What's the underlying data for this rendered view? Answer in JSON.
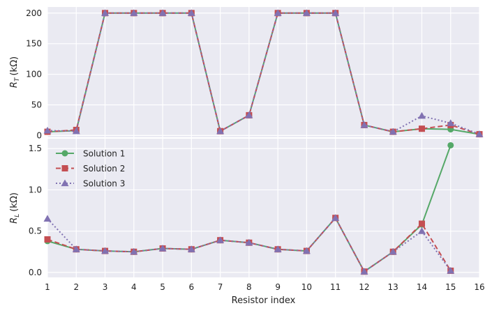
{
  "chart_data": {
    "type": "line",
    "x_label": "Resistor index",
    "x_ticks": [
      "1",
      "2",
      "3",
      "4",
      "5",
      "6",
      "7",
      "8",
      "9",
      "10",
      "11",
      "12",
      "13",
      "14",
      "15",
      "16"
    ],
    "x_range": [
      1,
      16
    ],
    "grid": true,
    "background": "#EAEAF2",
    "legend": {
      "placement": "upper-left of bottom panel",
      "entries": [
        "Solution 1",
        "Solution 2",
        "Solution 3"
      ]
    },
    "series_styles": [
      {
        "name": "Solution 1",
        "color": "#55A868",
        "marker": "circle",
        "dash": "solid"
      },
      {
        "name": "Solution 2",
        "color": "#C44E52",
        "marker": "square",
        "dash": "dashed"
      },
      {
        "name": "Solution 3",
        "color": "#8172B2",
        "marker": "triangle",
        "dash": "dotted"
      }
    ],
    "panels": [
      {
        "id": "rt",
        "ylabel_symbol": "R",
        "ylabel_sub": "T",
        "ylabel_unit": "(kΩ)",
        "y_range": [
          -3,
          210
        ],
        "y_ticks": [
          "0",
          "50",
          "100",
          "150",
          "200"
        ],
        "series": [
          {
            "name": "Solution 1",
            "x": [
              1,
              2,
              3,
              4,
              5,
              6,
              7,
              8,
              9,
              10,
              11,
              12,
              13,
              14,
              15,
              16
            ],
            "y": [
              6,
              8,
              200,
              200,
              200,
              200,
              7,
              33,
              200,
              200,
              200,
              17,
              6,
              11,
              10,
              2
            ]
          },
          {
            "name": "Solution 2",
            "x": [
              1,
              2,
              3,
              4,
              5,
              6,
              7,
              8,
              9,
              10,
              11,
              12,
              13,
              14,
              15,
              16
            ],
            "y": [
              6,
              9,
              200,
              200,
              200,
              200,
              7,
              33,
              200,
              200,
              200,
              17,
              6,
              11,
              17,
              2
            ]
          },
          {
            "name": "Solution 3",
            "x": [
              1,
              2,
              3,
              4,
              5,
              6,
              7,
              8,
              9,
              10,
              11,
              12,
              13,
              14,
              15,
              16
            ],
            "y": [
              8,
              7,
              200,
              200,
              200,
              200,
              7,
              33,
              200,
              200,
              200,
              17,
              6,
              32,
              20,
              2
            ]
          }
        ]
      },
      {
        "id": "rl",
        "ylabel_symbol": "R",
        "ylabel_sub": "L",
        "ylabel_unit": "(kΩ)",
        "y_range": [
          -0.06,
          1.62
        ],
        "y_ticks": [
          "0.0",
          "0.5",
          "1.0",
          "1.5"
        ],
        "series": [
          {
            "name": "Solution 1",
            "x": [
              1,
              2,
              3,
              4,
              5,
              6,
              7,
              8,
              9,
              10,
              11,
              12,
              13,
              14,
              15
            ],
            "y": [
              0.38,
              0.28,
              0.26,
              0.25,
              0.29,
              0.28,
              0.39,
              0.36,
              0.28,
              0.26,
              0.66,
              0.01,
              0.25,
              0.58,
              1.54
            ]
          },
          {
            "name": "Solution 2",
            "x": [
              1,
              2,
              3,
              4,
              5,
              6,
              7,
              8,
              9,
              10,
              11,
              12,
              13,
              14,
              15
            ],
            "y": [
              0.4,
              0.28,
              0.26,
              0.25,
              0.29,
              0.28,
              0.39,
              0.36,
              0.28,
              0.26,
              0.66,
              0.01,
              0.25,
              0.59,
              0.02
            ]
          },
          {
            "name": "Solution 3",
            "x": [
              1,
              2,
              3,
              4,
              5,
              6,
              7,
              8,
              9,
              10,
              11,
              12,
              13,
              14,
              15
            ],
            "y": [
              0.65,
              0.28,
              0.26,
              0.25,
              0.29,
              0.28,
              0.39,
              0.36,
              0.28,
              0.26,
              0.66,
              0.01,
              0.25,
              0.5,
              0.02
            ]
          }
        ]
      }
    ]
  }
}
